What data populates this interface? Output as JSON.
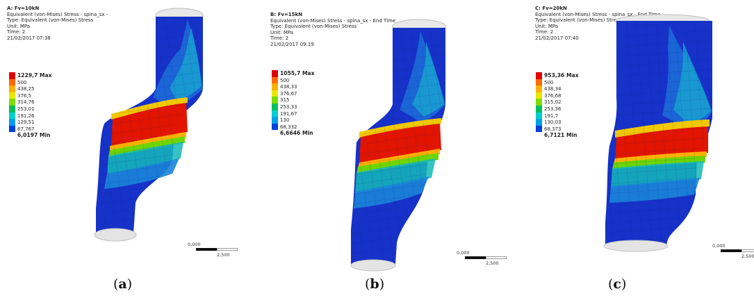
{
  "panels": [
    {
      "title": "A: Fv=10kN",
      "line1": "Equivalent (von-Mises) Stress - spina_sx -",
      "line2": "Type: Equivalent (von-Mises) Stress",
      "line3": "Unit: MPa",
      "line4": "Time: 2",
      "line5": "21/02/2017 07:38",
      "legend": [
        "1229,7 Max",
        "500",
        "438,25",
        "376,5",
        "314,76",
        "253,01",
        "191,26",
        "129,51",
        "67,767",
        "6,0197 Min"
      ],
      "scale_zero": "0,000",
      "scale_end": "2,500",
      "caption_letter": "a"
    },
    {
      "title": "B: Fv=15kN",
      "line1": "Equivalent (von-Mises) Stress - spina_sx - End Time",
      "line2": "Type: Equivalent (von-Mises) Stress",
      "line3": "Unit: MPa",
      "line4": "Time: 2",
      "line5": "21/02/2017 09:19",
      "legend": [
        "1055,7 Max",
        "500",
        "438,33",
        "376,67",
        "315",
        "253,33",
        "191,67",
        "130",
        "68,332",
        "6,6646 Min"
      ],
      "scale_zero": "0,000",
      "scale_end": "2,500",
      "caption_letter": "b"
    },
    {
      "title": "C: Fv=20kN",
      "line1": "Equivalent (von-Mises) Stress - spina_sx - End Time",
      "line2": "Type: Equivalent (von-Mises) Stress",
      "line3": "Unit: MPa",
      "line4": "Time: 2",
      "line5": "21/02/2017 07:40",
      "legend": [
        "953,36 Max",
        "500",
        "438,34",
        "376,68",
        "315,02",
        "253,36",
        "191,7",
        "130,03",
        "68,373",
        "6,7121 Min"
      ],
      "scale_zero": "0,000",
      "scale_end": "2,500",
      "caption_letter": "c"
    }
  ],
  "legend_colors": [
    "#e00000",
    "#ff6a00",
    "#ffb000",
    "#e8e800",
    "#7ddd00",
    "#00c060",
    "#00d0d0",
    "#00a0e8",
    "#0040e0"
  ]
}
